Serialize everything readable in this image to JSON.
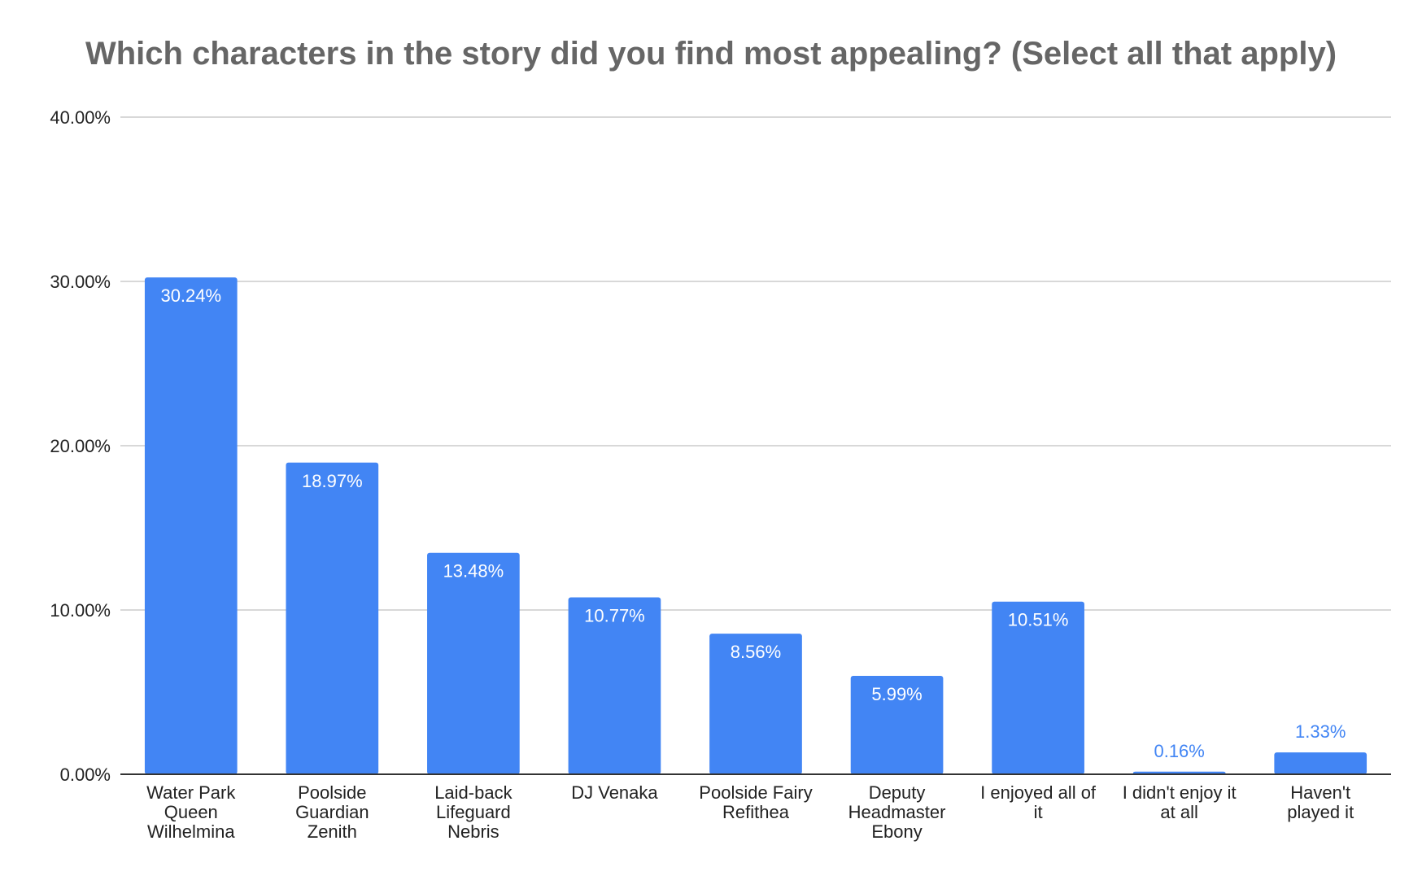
{
  "chart_data": {
    "type": "bar",
    "title": "Which characters in the story did you find most appealing? (Select all that apply)",
    "xlabel": "",
    "ylabel": "",
    "ylim": [
      0,
      40
    ],
    "yticks": [
      {
        "value": 0,
        "label": "0.00%"
      },
      {
        "value": 10,
        "label": "10.00%"
      },
      {
        "value": 20,
        "label": "20.00%"
      },
      {
        "value": 30,
        "label": "30.00%"
      },
      {
        "value": 40,
        "label": "40.00%"
      }
    ],
    "categories": [
      [
        "Water Park",
        "Queen",
        "Wilhelmina"
      ],
      [
        "Poolside",
        "Guardian",
        "Zenith"
      ],
      [
        "Laid-back",
        "Lifeguard",
        "Nebris"
      ],
      [
        "DJ Venaka"
      ],
      [
        "Poolside Fairy",
        "Refithea"
      ],
      [
        "Deputy",
        "Headmaster",
        "Ebony"
      ],
      [
        "I enjoyed all of",
        "it"
      ],
      [
        "I didn't enjoy it",
        "at all"
      ],
      [
        "Haven't",
        "played it"
      ]
    ],
    "values": [
      30.24,
      18.97,
      13.48,
      10.77,
      8.56,
      5.99,
      10.51,
      0.16,
      1.33
    ],
    "data_labels": [
      "30.24%",
      "18.97%",
      "13.48%",
      "10.77%",
      "8.56%",
      "5.99%",
      "10.51%",
      "0.16%",
      "1.33%"
    ],
    "grid": true,
    "legend": "none",
    "colors": {
      "bar": "#4285f4",
      "label_inside": "#ffffff",
      "label_outside": "#4285f4",
      "grid": "#cccccc",
      "axis": "#333333",
      "title": "#666666"
    }
  }
}
